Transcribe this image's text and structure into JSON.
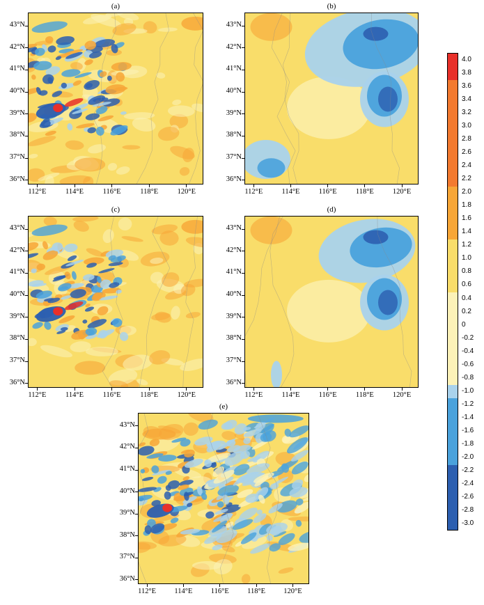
{
  "chart_data": {
    "type": "heatmap",
    "panels": [
      {
        "id": "a",
        "label": "(a)"
      },
      {
        "id": "b",
        "label": "(b)"
      },
      {
        "id": "c",
        "label": "(c)"
      },
      {
        "id": "d",
        "label": "(d)"
      },
      {
        "id": "e",
        "label": "(e)"
      }
    ],
    "lat_ticks": [
      "36°N",
      "37°N",
      "38°N",
      "39°N",
      "40°N",
      "41°N",
      "42°N",
      "43°N"
    ],
    "lat_values": [
      36,
      37,
      38,
      39,
      40,
      41,
      42,
      43
    ],
    "lon_ticks": [
      "112°E",
      "114°E",
      "116°E",
      "118°E",
      "120°E"
    ],
    "lon_values": [
      112,
      114,
      116,
      118,
      120
    ],
    "lon_range": [
      111.5,
      120.9
    ],
    "lat_range": [
      35.8,
      43.6
    ],
    "colorbar": {
      "labels": [
        "4.0",
        "3.8",
        "3.6",
        "3.4",
        "3.2",
        "3.0",
        "2.8",
        "2.6",
        "2.4",
        "2.2",
        "2.0",
        "1.8",
        "1.6",
        "1.4",
        "1.2",
        "1.0",
        "0.8",
        "0.6",
        "0.4",
        "0.2",
        "0",
        "-0.2",
        "-0.4",
        "-0.6",
        "-0.8",
        "-1.0",
        "-1.2",
        "-1.4",
        "-1.6",
        "-1.8",
        "-2.0",
        "-2.2",
        "-2.4",
        "-2.6",
        "-2.8",
        "-3.0"
      ],
      "max": 4.1,
      "min": -3.1
    },
    "colors": {
      "red": "#e8302a",
      "orange": "#f7a637",
      "yellow": "#f9dd6a",
      "pale_yellow": "#fcf2b8",
      "light_blue": "#a9d2ec",
      "mid_blue": "#4aa2dc",
      "dark_blue": "#2c5fb0"
    }
  }
}
